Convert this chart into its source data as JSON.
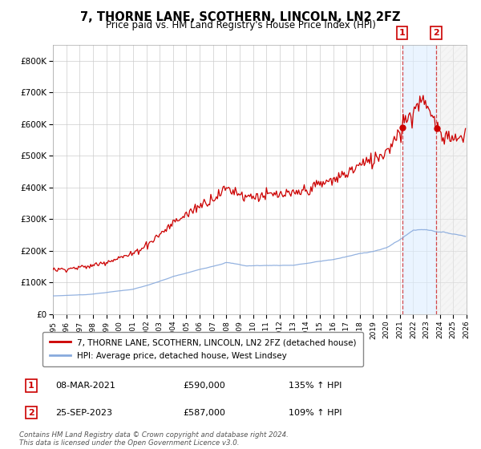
{
  "title": "7, THORNE LANE, SCOTHERN, LINCOLN, LN2 2FZ",
  "subtitle": "Price paid vs. HM Land Registry's House Price Index (HPI)",
  "legend_line1": "7, THORNE LANE, SCOTHERN, LINCOLN, LN2 2FZ (detached house)",
  "legend_line2": "HPI: Average price, detached house, West Lindsey",
  "annotation1_label": "1",
  "annotation1_date": "08-MAR-2021",
  "annotation1_price": "£590,000",
  "annotation1_hpi": "135% ↑ HPI",
  "annotation2_label": "2",
  "annotation2_date": "25-SEP-2023",
  "annotation2_price": "£587,000",
  "annotation2_hpi": "109% ↑ HPI",
  "sale1_year": 2021.17,
  "sale1_price": 590000,
  "sale2_year": 2023.71,
  "sale2_price": 587000,
  "red_line_color": "#cc0000",
  "blue_line_color": "#88aadd",
  "annotation_box_color": "#cc0000",
  "background_color": "#ffffff",
  "grid_color": "#cccccc",
  "ylim": [
    0,
    850000
  ],
  "xlim_start": 1995.0,
  "xlim_end": 2026.0,
  "footer_text": "Contains HM Land Registry data © Crown copyright and database right 2024.\nThis data is licensed under the Open Government Licence v3.0."
}
